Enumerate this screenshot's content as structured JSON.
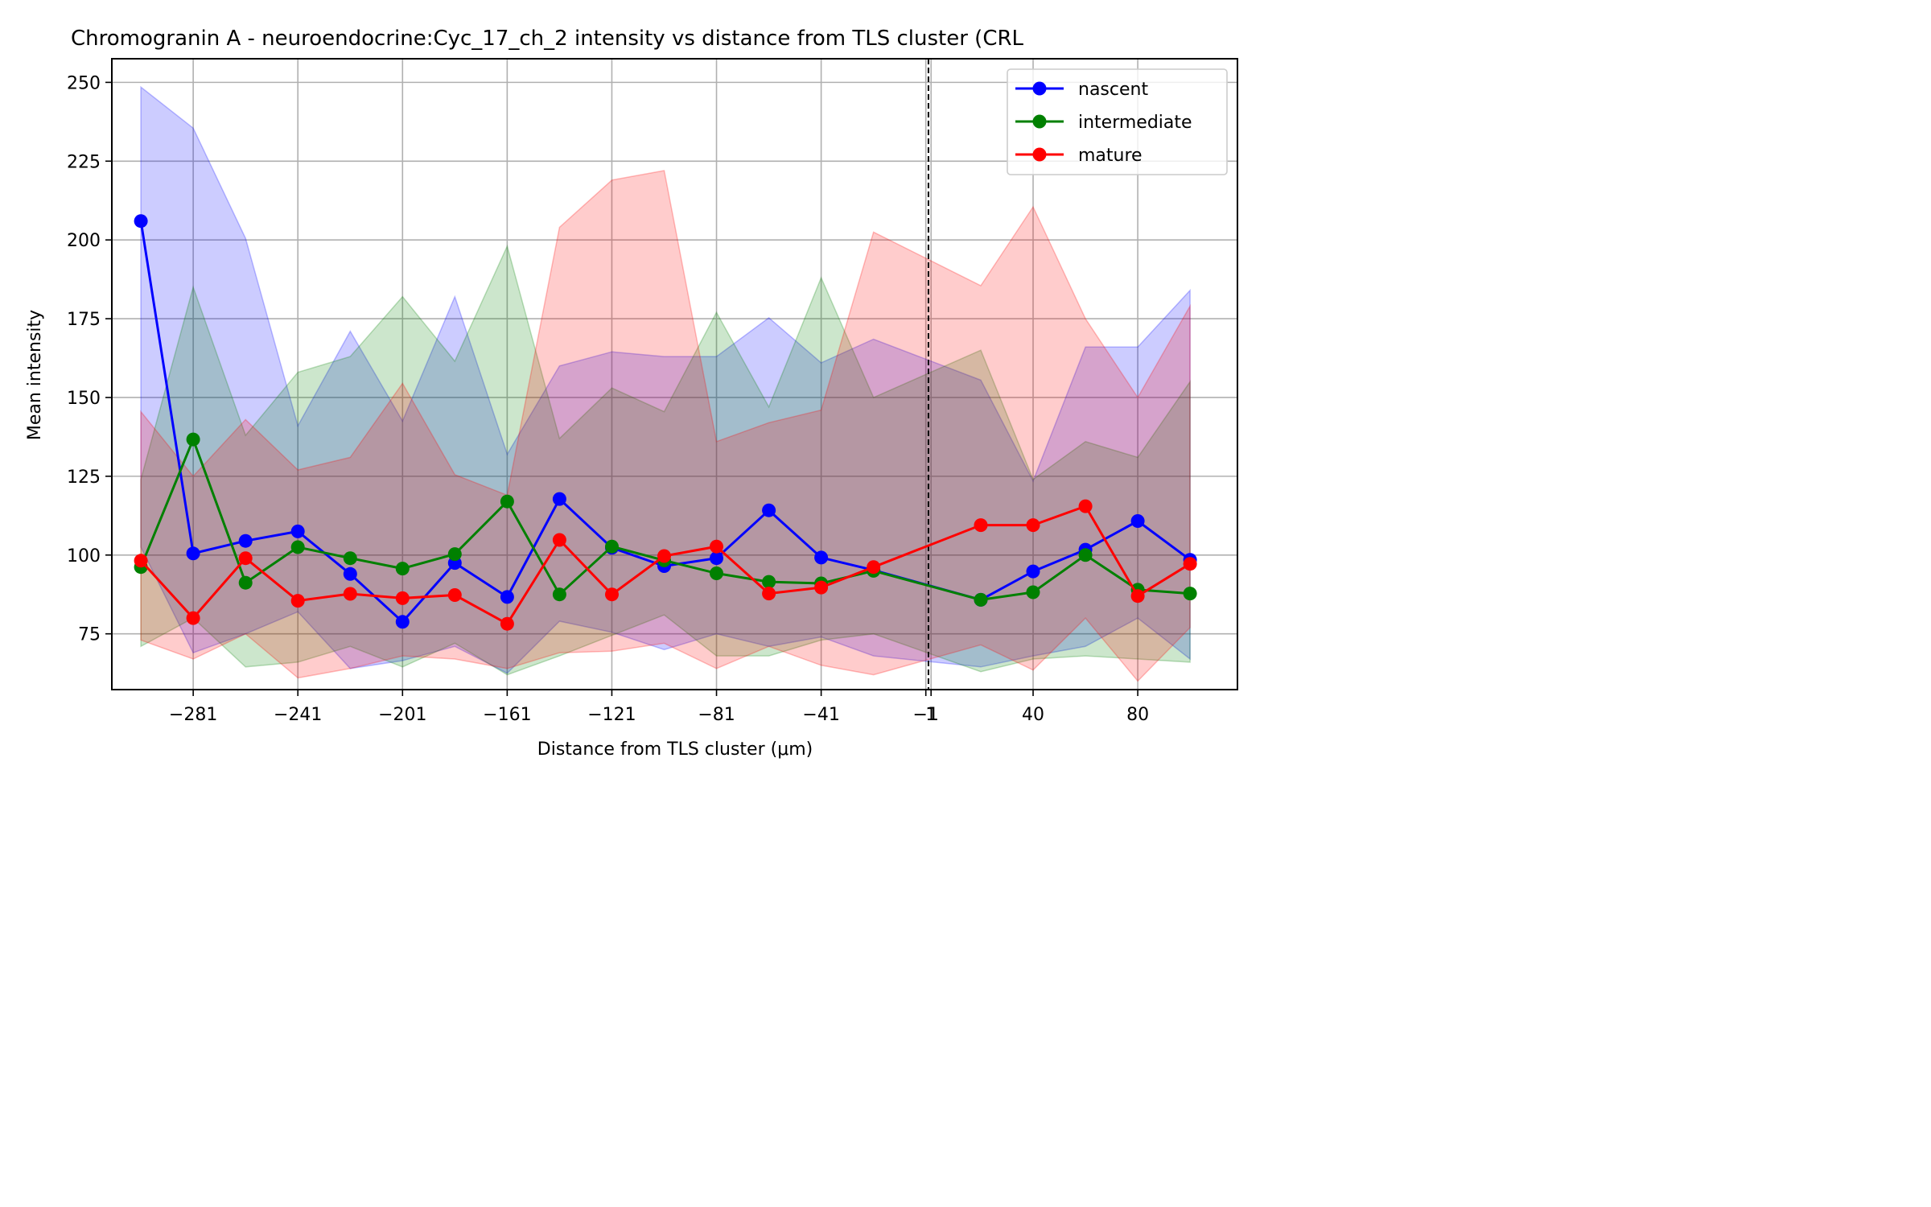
{
  "chart_data": {
    "type": "line",
    "title": "Chromogranin A - neuroendocrine:Cyc_17_ch_2 intensity vs distance from TLS cluster (CRL",
    "xlabel": "Distance from TLS cluster (μm)",
    "ylabel": "Mean intensity",
    "xlim": [
      -312.1,
      118.1
    ],
    "ylim": [
      57.3,
      257.5
    ],
    "xticks": [
      -281,
      -241,
      -201,
      -161,
      -121,
      -81,
      -41,
      -1,
      1,
      40,
      80
    ],
    "xtick_labels": [
      "−281",
      "−241",
      "−201",
      "−161",
      "−121",
      "−81",
      "−41",
      "−1",
      "1",
      "40",
      "80"
    ],
    "yticks": [
      75,
      100,
      125,
      150,
      175,
      200,
      225,
      250
    ],
    "ytick_labels": [
      "75",
      "100",
      "125",
      "150",
      "175",
      "200",
      "225",
      "250"
    ],
    "grid": true,
    "legend_position": "upper right",
    "vline": {
      "x": 0,
      "style": "dashed",
      "color": "#000000"
    },
    "series": [
      {
        "name": "nascent",
        "color": "#0000ff",
        "band_color": "#0000ff",
        "x": [
          -301,
          -281,
          -261,
          -241,
          -221,
          -201,
          -181,
          -161,
          -141,
          -121,
          -101,
          -81,
          -61,
          -41,
          -21,
          20,
          40,
          60,
          80,
          100
        ],
        "values": [
          206,
          100.5,
          104.5,
          107.5,
          94,
          78.8,
          97.5,
          86.7,
          117.8,
          102.3,
          96.5,
          99,
          114.2,
          99.2,
          95.2,
          85.8,
          94.8,
          101.7,
          110.8,
          98.5
        ],
        "upper": [
          248.5,
          235.5,
          200.5,
          141,
          171,
          142.5,
          182,
          132,
          160,
          164.5,
          163,
          163,
          175.3,
          161,
          168.5,
          155.5,
          123.5,
          166,
          166,
          184
        ],
        "lower": [
          102.5,
          69,
          75,
          82,
          64,
          66.5,
          71,
          62.5,
          79,
          75.5,
          70,
          75,
          71,
          74,
          68,
          64.5,
          68,
          71,
          80,
          67
        ]
      },
      {
        "name": "intermediate",
        "color": "#008000",
        "band_color": "#008000",
        "x": [
          -301,
          -281,
          -261,
          -241,
          -221,
          -201,
          -181,
          -161,
          -141,
          -121,
          -101,
          -81,
          -61,
          -41,
          -21,
          20,
          40,
          60,
          80,
          100
        ],
        "values": [
          96.2,
          136.7,
          91.2,
          102.5,
          99,
          95.7,
          100.3,
          117,
          87.5,
          102.7,
          98.3,
          94.2,
          91.5,
          91,
          95,
          85.8,
          88.2,
          100,
          89,
          87.8
        ],
        "upper": [
          124,
          185,
          138,
          158,
          163,
          182,
          161.5,
          198,
          137,
          153,
          145.5,
          177,
          147,
          188,
          150,
          165,
          124,
          136,
          131,
          155
        ],
        "lower": [
          71,
          80,
          64.5,
          66,
          71,
          64.5,
          72,
          62,
          68,
          74.5,
          81,
          68,
          68,
          73,
          75,
          63,
          67,
          68,
          67,
          66
        ]
      },
      {
        "name": "mature",
        "color": "#ff0000",
        "band_color": "#ff0000",
        "x": [
          -301,
          -281,
          -261,
          -241,
          -221,
          -201,
          -181,
          -161,
          -141,
          -121,
          -101,
          -81,
          -61,
          -41,
          -21,
          20,
          40,
          60,
          80,
          100
        ],
        "values": [
          98.2,
          80,
          99,
          85.5,
          87.7,
          86.3,
          87.3,
          78.2,
          104.8,
          87.5,
          99.7,
          102.7,
          87.8,
          89.7,
          96.2,
          109.5,
          109.5,
          115.5,
          87,
          97.2
        ],
        "upper": [
          145.5,
          125,
          143,
          127,
          131,
          154.5,
          125.5,
          119,
          204,
          219,
          222,
          136,
          142,
          146,
          202.5,
          185.5,
          210.5,
          175,
          150,
          179
        ],
        "lower": [
          73,
          67,
          75,
          61,
          64,
          68,
          67,
          64,
          69,
          69.5,
          72,
          64,
          71,
          65,
          62,
          71.5,
          63.5,
          80,
          60,
          77
        ]
      }
    ]
  }
}
